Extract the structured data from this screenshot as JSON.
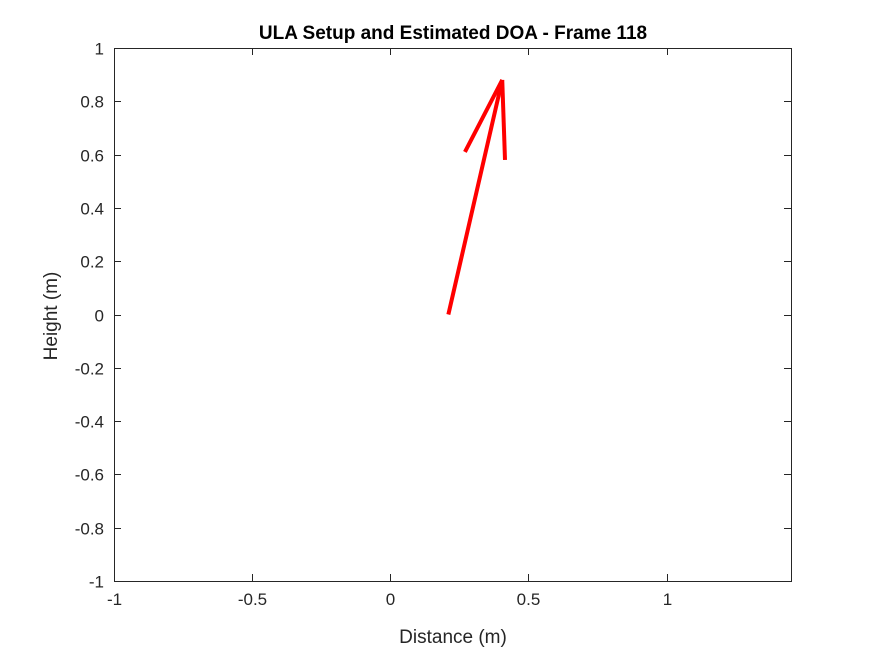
{
  "chart_data": {
    "type": "line",
    "title": "ULA Setup and Estimated DOA - Frame 118",
    "xlabel": "Distance (m)",
    "ylabel": "Height (m)",
    "xlim": [
      -1,
      1.45
    ],
    "ylim": [
      -1,
      1
    ],
    "xticks": [
      -1,
      -0.5,
      0,
      0.5,
      1
    ],
    "xtick_labels": [
      "-1",
      "-0.5",
      "0",
      "0.5",
      "1"
    ],
    "yticks": [
      -1,
      -0.8,
      -0.6,
      -0.4,
      -0.2,
      0,
      0.2,
      0.4,
      0.6,
      0.8,
      1
    ],
    "ytick_labels": [
      "-1",
      "-0.8",
      "-0.6",
      "-0.4",
      "-0.2",
      "0",
      "0.2",
      "0.4",
      "0.6",
      "0.8",
      "1"
    ],
    "grid": false,
    "box": true,
    "series": [
      {
        "kind": "arrow",
        "color": "#ff0000",
        "shaft": {
          "x": [
            0.21,
            0.405
          ],
          "y": [
            0.0,
            0.88
          ]
        },
        "head_left": {
          "x": [
            0.405,
            0.27
          ],
          "y": [
            0.88,
            0.61
          ]
        },
        "head_right": {
          "x": [
            0.405,
            0.415
          ],
          "y": [
            0.88,
            0.58
          ]
        }
      }
    ]
  }
}
